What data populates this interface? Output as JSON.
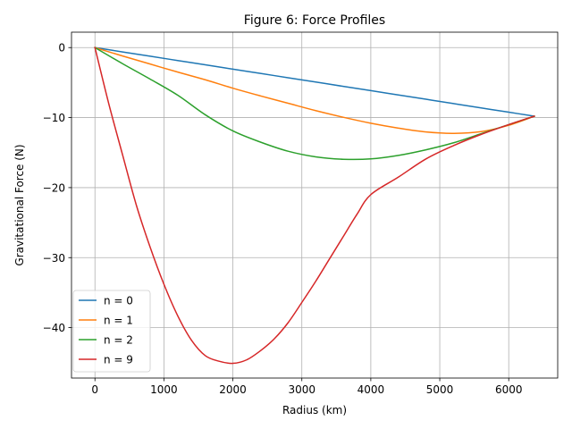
{
  "chart_data": {
    "type": "line",
    "title": "Figure 6: Force Profiles",
    "xlabel": "Radius (km)",
    "ylabel": "Gravitational Force (N)",
    "xlim": [
      -340,
      6710
    ],
    "ylim": [
      -47.2,
      2.2
    ],
    "xticks": [
      0,
      1000,
      2000,
      3000,
      4000,
      5000,
      6000
    ],
    "xtick_labels": [
      "0",
      "1000",
      "2000",
      "3000",
      "4000",
      "5000",
      "6000"
    ],
    "yticks": [
      0,
      -10,
      -20,
      -30,
      -40
    ],
    "ytick_labels": [
      "0",
      "−10",
      "−20",
      "−30",
      "−40"
    ],
    "grid": true,
    "legend_position": "lower-left",
    "series": [
      {
        "name": "n = 0",
        "color": "#1f77b4",
        "x": [
          0,
          400,
          800,
          1200,
          1600,
          2000,
          2400,
          2800,
          3200,
          3600,
          4000,
          4400,
          4800,
          5200,
          5600,
          6000,
          6371
        ],
        "y": [
          0,
          -0.62,
          -1.23,
          -1.85,
          -2.46,
          -3.08,
          -3.69,
          -4.31,
          -4.92,
          -5.54,
          -6.15,
          -6.77,
          -7.38,
          -8.0,
          -8.62,
          -9.23,
          -9.8
        ]
      },
      {
        "name": "n = 1",
        "color": "#ff7f0e",
        "x": [
          0,
          400,
          800,
          1200,
          1600,
          2000,
          2400,
          2800,
          3200,
          3600,
          4000,
          4400,
          4800,
          5200,
          5600,
          6000,
          6371
        ],
        "y": [
          0,
          -1.2,
          -2.35,
          -3.5,
          -4.6,
          -5.8,
          -6.9,
          -7.95,
          -9.0,
          -9.95,
          -10.8,
          -11.5,
          -12.05,
          -12.25,
          -12.0,
          -11.1,
          -9.8
        ]
      },
      {
        "name": "n = 2",
        "color": "#2ca02c",
        "x": [
          0,
          400,
          800,
          1200,
          1600,
          2000,
          2400,
          2800,
          3200,
          3600,
          4000,
          4400,
          4800,
          5200,
          5600,
          6000,
          6371
        ],
        "y": [
          0,
          -2.3,
          -4.5,
          -6.8,
          -9.6,
          -11.9,
          -13.5,
          -14.8,
          -15.6,
          -15.95,
          -15.9,
          -15.4,
          -14.6,
          -13.6,
          -12.3,
          -11.0,
          -9.8
        ]
      },
      {
        "name": "n = 9",
        "color": "#d62728",
        "x": [
          0,
          200,
          400,
          600,
          800,
          1000,
          1200,
          1400,
          1600,
          1800,
          2000,
          2200,
          2400,
          2600,
          2800,
          3000,
          3200,
          3400,
          3600,
          3800,
          4000,
          4400,
          4800,
          5200,
          5600,
          6000,
          6371
        ],
        "y": [
          0,
          -8.0,
          -15.3,
          -22.5,
          -28.5,
          -33.8,
          -38.3,
          -41.8,
          -44.0,
          -44.8,
          -45.1,
          -44.6,
          -43.3,
          -41.6,
          -39.3,
          -36.4,
          -33.4,
          -30.2,
          -27.0,
          -23.8,
          -21.0,
          -18.5,
          -15.9,
          -14.0,
          -12.4,
          -11.0,
          -9.8
        ]
      }
    ]
  }
}
